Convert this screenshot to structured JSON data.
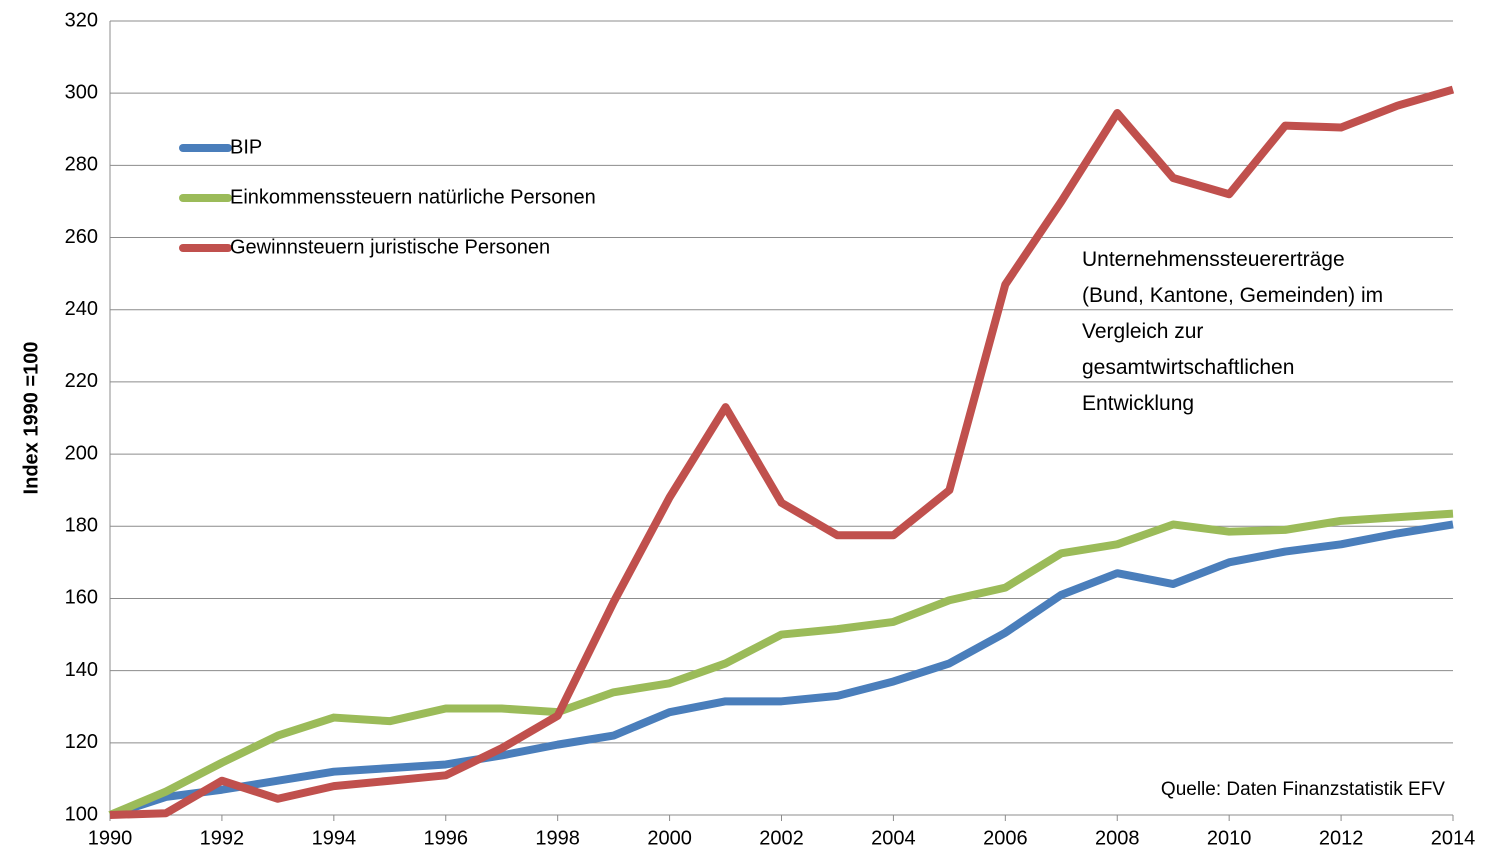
{
  "chart_data": {
    "type": "line",
    "ylabel": "Index 1990 =100",
    "annotation": [
      "Unternehmenssteuererträge",
      "(Bund, Kantone, Gemeinden) im",
      "Vergleich zur",
      "gesamtwirtschaftlichen",
      "Entwicklung"
    ],
    "source": "Quelle: Daten Finanzstatistik EFV",
    "x": [
      1990,
      1991,
      1992,
      1993,
      1994,
      1995,
      1996,
      1997,
      1998,
      1999,
      2000,
      2001,
      2002,
      2003,
      2004,
      2005,
      2006,
      2007,
      2008,
      2009,
      2010,
      2011,
      2012,
      2013,
      2014
    ],
    "series": [
      {
        "name": "BIP",
        "color": "#4a7ebb",
        "values": [
          100,
          105,
          107,
          109.5,
          112,
          113,
          114,
          116.5,
          119.5,
          122,
          128.5,
          131.5,
          131.5,
          133,
          137,
          142,
          150.5,
          161,
          167,
          164,
          170,
          173,
          175,
          178,
          180.5
        ]
      },
      {
        "name": "Einkommenssteuern natürliche Personen",
        "color": "#9bbb59",
        "values": [
          100,
          106.5,
          114.5,
          122,
          127,
          126,
          129.5,
          129.5,
          128.5,
          134,
          136.5,
          142,
          150,
          151.5,
          153.5,
          159.5,
          163,
          172.5,
          175,
          180.5,
          178.5,
          179,
          181.5,
          182.5,
          183.5
        ]
      },
      {
        "name": "Gewinnsteuern juristische Personen",
        "color": "#c0504d",
        "values": [
          100,
          100.5,
          109.5,
          104.5,
          108,
          109.5,
          111,
          118.5,
          127.5,
          159,
          188,
          213,
          186.5,
          177.5,
          177.5,
          190,
          247,
          270,
          294.5,
          276.5,
          272,
          291,
          290.5,
          296.5,
          301
        ]
      }
    ],
    "xlim": [
      1990,
      2014
    ],
    "xticks": [
      1990,
      1992,
      1994,
      1996,
      1998,
      2000,
      2002,
      2004,
      2006,
      2008,
      2010,
      2012,
      2014
    ],
    "ylim": [
      100,
      320
    ],
    "yticks": [
      100,
      120,
      140,
      160,
      180,
      200,
      220,
      240,
      260,
      280,
      300,
      320
    ],
    "grid": true,
    "legend": "upper-left"
  }
}
